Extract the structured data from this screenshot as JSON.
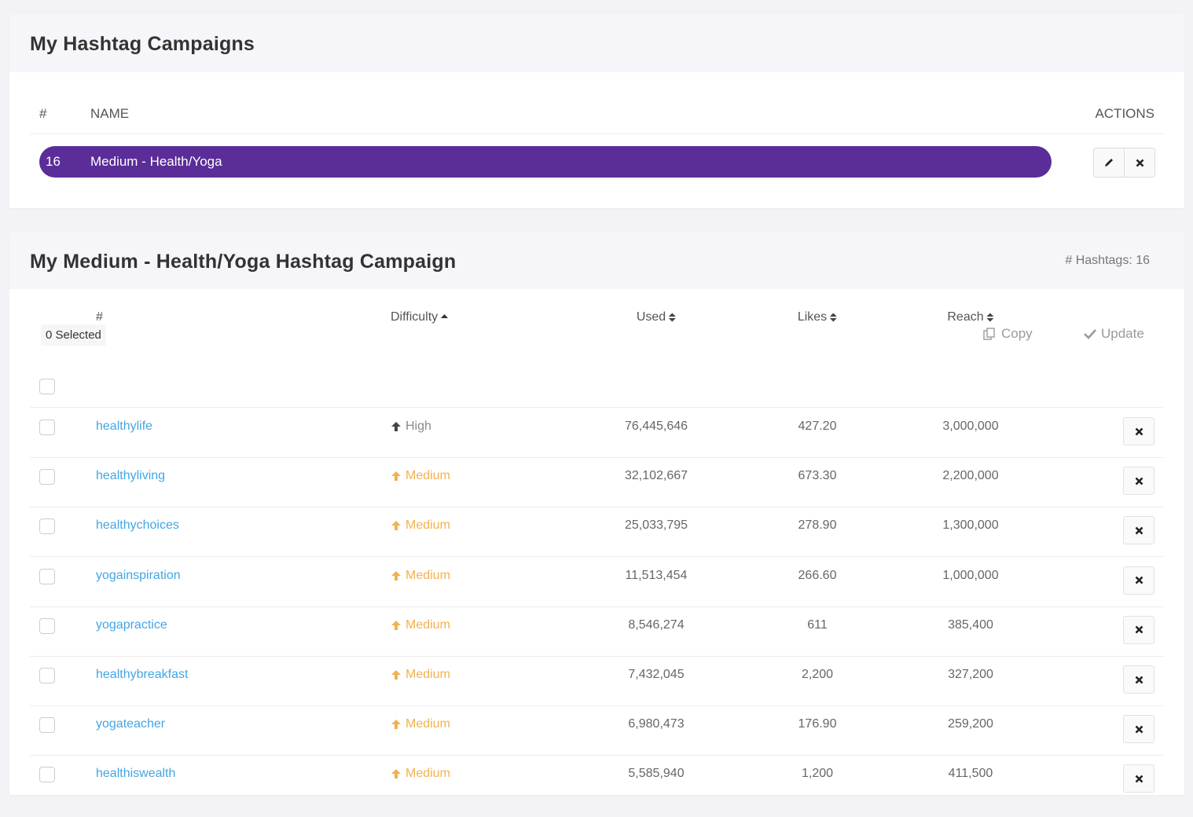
{
  "campaigns_panel": {
    "title": "My Hashtag Campaigns",
    "table": {
      "columns": [
        "#",
        "NAME",
        "ACTIONS"
      ],
      "rows": [
        [
          "16",
          "Medium - Health/Yoga"
        ]
      ]
    }
  },
  "campaign_panel": {
    "title": "My Medium - Health/Yoga Hashtag Campaign",
    "hashtag_count": "# Hashtags: 16",
    "selected": "0 Selected",
    "actions": [
      "Copy",
      "Update"
    ],
    "table": {
      "columns": [
        "#",
        "Difficulty",
        "Used",
        "Likes",
        "Reach"
      ],
      "rows": [
        [
          "healthylife",
          "High",
          "76,445,646",
          "427.20",
          "3,000,000"
        ],
        [
          "healthyliving",
          "Medium",
          "32,102,667",
          "673.30",
          "2,200,000"
        ],
        [
          "healthychoices",
          "Medium",
          "25,033,795",
          "278.90",
          "1,300,000"
        ],
        [
          "yogainspiration",
          "Medium",
          "11,513,454",
          "266.60",
          "1,000,000"
        ],
        [
          "yogapractice",
          "Medium",
          "8,546,274",
          "611",
          "385,400"
        ],
        [
          "healthybreakfast",
          "Medium",
          "7,432,045",
          "2,200",
          "327,200"
        ],
        [
          "yogateacher",
          "Medium",
          "6,980,473",
          "176.90",
          "259,200"
        ],
        [
          "healthiswealth",
          "Medium",
          "5,585,940",
          "1,200",
          "411,500"
        ]
      ]
    }
  }
}
